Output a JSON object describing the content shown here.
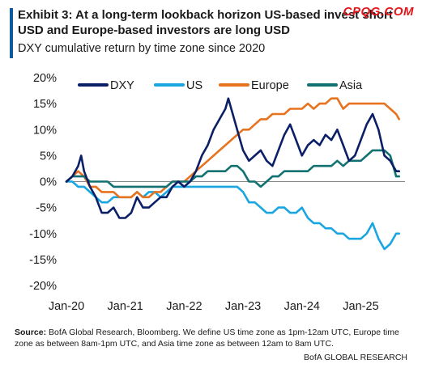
{
  "header": {
    "title": "Exhibit 3: At a long-term lookback horizon US-based invest short USD and Europe-based investors are long USD",
    "subtitle": "DXY cumulative return by time zone since 2020",
    "watermark": "CPQG.COM"
  },
  "footer": {
    "source_label": "Source:",
    "source_text": " BofA Global Research, Bloomberg. We define US time zone as 1pm-12am UTC, Europe time zone as between 8am-1pm UTC, and Asia time zone as between 12am to 8am UTC.",
    "credit": "BofA GLOBAL RESEARCH"
  },
  "chart_data": {
    "type": "line",
    "ylim": [
      -20,
      20
    ],
    "y_ticks": [
      20,
      15,
      10,
      5,
      0,
      -5,
      -10,
      -15,
      -20
    ],
    "y_tick_labels": [
      "20%",
      "15%",
      "10%",
      "5%",
      "0%",
      "-5%",
      "-10%",
      "-15%",
      "-20%"
    ],
    "xlim": [
      2020.0,
      2025.75
    ],
    "x_ticks": [
      2020,
      2021,
      2022,
      2023,
      2024,
      2025
    ],
    "x_tick_labels": [
      "Jan-20",
      "Jan-21",
      "Jan-22",
      "Jan-23",
      "Jan-24",
      "Jan-25"
    ],
    "legend_position": "top",
    "colors": {
      "DXY": "#0b1f66",
      "US": "#1aa6e0",
      "Europe": "#e8731f",
      "Asia": "#127272"
    },
    "series": [
      {
        "name": "DXY",
        "x": [
          2020.0,
          2020.1,
          2020.2,
          2020.25,
          2020.3,
          2020.4,
          2020.5,
          2020.6,
          2020.7,
          2020.8,
          2020.9,
          2021.0,
          2021.1,
          2021.2,
          2021.3,
          2021.4,
          2021.5,
          2021.6,
          2021.7,
          2021.8,
          2021.9,
          2022.0,
          2022.1,
          2022.2,
          2022.3,
          2022.4,
          2022.5,
          2022.6,
          2022.7,
          2022.75,
          2022.8,
          2022.9,
          2023.0,
          2023.1,
          2023.2,
          2023.3,
          2023.4,
          2023.5,
          2023.6,
          2023.7,
          2023.8,
          2023.9,
          2024.0,
          2024.1,
          2024.2,
          2024.3,
          2024.4,
          2024.5,
          2024.6,
          2024.7,
          2024.8,
          2024.9,
          2025.0,
          2025.1,
          2025.2,
          2025.3,
          2025.4,
          2025.5,
          2025.6,
          2025.65
        ],
        "values": [
          0,
          1,
          3,
          5,
          2,
          -1,
          -3,
          -6,
          -6,
          -5,
          -7,
          -7,
          -6,
          -3,
          -5,
          -5,
          -4,
          -3,
          -3,
          -1,
          0,
          -1,
          0,
          2,
          5,
          7,
          10,
          12,
          14,
          16,
          14,
          10,
          6,
          4,
          5,
          6,
          4,
          3,
          6,
          9,
          11,
          8,
          5,
          7,
          8,
          7,
          9,
          8,
          10,
          7,
          4,
          5,
          8,
          11,
          13,
          10,
          5,
          4,
          2,
          2
        ]
      },
      {
        "name": "US",
        "x": [
          2020.0,
          2020.1,
          2020.2,
          2020.3,
          2020.4,
          2020.5,
          2020.6,
          2020.7,
          2020.8,
          2020.9,
          2021.0,
          2021.1,
          2021.2,
          2021.3,
          2021.4,
          2021.5,
          2021.6,
          2021.7,
          2021.8,
          2021.9,
          2022.0,
          2022.1,
          2022.2,
          2022.3,
          2022.4,
          2022.5,
          2022.6,
          2022.7,
          2022.8,
          2022.9,
          2023.0,
          2023.1,
          2023.2,
          2023.3,
          2023.4,
          2023.5,
          2023.6,
          2023.7,
          2023.8,
          2023.9,
          2024.0,
          2024.1,
          2024.2,
          2024.3,
          2024.4,
          2024.5,
          2024.6,
          2024.7,
          2024.8,
          2024.9,
          2025.0,
          2025.1,
          2025.2,
          2025.3,
          2025.4,
          2025.5,
          2025.6,
          2025.65
        ],
        "values": [
          0,
          0,
          -1,
          -1,
          -2,
          -3,
          -4,
          -4,
          -3,
          -3,
          -3,
          -3,
          -2,
          -3,
          -2,
          -2,
          -3,
          -2,
          -1,
          -1,
          -1,
          -1,
          -1,
          -1,
          -1,
          -1,
          -1,
          -1,
          -1,
          -1,
          -2,
          -4,
          -4,
          -5,
          -6,
          -6,
          -5,
          -5,
          -6,
          -6,
          -5,
          -7,
          -8,
          -8,
          -9,
          -9,
          -10,
          -10,
          -11,
          -11,
          -11,
          -10,
          -8,
          -11,
          -13,
          -12,
          -10,
          -10
        ]
      },
      {
        "name": "Europe",
        "x": [
          2020.0,
          2020.1,
          2020.2,
          2020.3,
          2020.4,
          2020.5,
          2020.6,
          2020.7,
          2020.8,
          2020.9,
          2021.0,
          2021.1,
          2021.2,
          2021.3,
          2021.4,
          2021.5,
          2021.6,
          2021.7,
          2021.8,
          2021.9,
          2022.0,
          2022.1,
          2022.2,
          2022.3,
          2022.4,
          2022.5,
          2022.6,
          2022.7,
          2022.8,
          2022.9,
          2023.0,
          2023.1,
          2023.2,
          2023.3,
          2023.4,
          2023.5,
          2023.6,
          2023.7,
          2023.8,
          2023.9,
          2024.0,
          2024.1,
          2024.2,
          2024.3,
          2024.4,
          2024.5,
          2024.6,
          2024.7,
          2024.8,
          2024.9,
          2025.0,
          2025.1,
          2025.2,
          2025.3,
          2025.4,
          2025.5,
          2025.6,
          2025.65
        ],
        "values": [
          0,
          1,
          2,
          1,
          -1,
          -1,
          -2,
          -2,
          -2,
          -3,
          -3,
          -3,
          -2,
          -3,
          -3,
          -2,
          -2,
          -1,
          0,
          0,
          0,
          1,
          2,
          3,
          4,
          5,
          6,
          7,
          8,
          9,
          10,
          10,
          11,
          12,
          12,
          13,
          13,
          13,
          14,
          14,
          14,
          15,
          14,
          15,
          15,
          16,
          16,
          14,
          15,
          15,
          15,
          15,
          15,
          15,
          15,
          14,
          13,
          12
        ]
      },
      {
        "name": "Asia",
        "x": [
          2020.0,
          2020.1,
          2020.2,
          2020.3,
          2020.4,
          2020.5,
          2020.6,
          2020.7,
          2020.8,
          2020.9,
          2021.0,
          2021.1,
          2021.2,
          2021.3,
          2021.4,
          2021.5,
          2021.6,
          2021.7,
          2021.8,
          2021.9,
          2022.0,
          2022.1,
          2022.2,
          2022.3,
          2022.4,
          2022.5,
          2022.6,
          2022.7,
          2022.8,
          2022.9,
          2023.0,
          2023.1,
          2023.2,
          2023.3,
          2023.4,
          2023.5,
          2023.6,
          2023.7,
          2023.8,
          2023.9,
          2024.0,
          2024.1,
          2024.2,
          2024.3,
          2024.4,
          2024.5,
          2024.6,
          2024.7,
          2024.8,
          2024.9,
          2025.0,
          2025.1,
          2025.2,
          2025.3,
          2025.4,
          2025.5,
          2025.6,
          2025.65
        ],
        "values": [
          0,
          1,
          1,
          1,
          0,
          0,
          0,
          0,
          -1,
          -1,
          -1,
          -1,
          -1,
          -1,
          -1,
          -1,
          -1,
          -1,
          0,
          0,
          0,
          0,
          1,
          1,
          2,
          2,
          2,
          2,
          3,
          3,
          2,
          0,
          0,
          -1,
          0,
          1,
          1,
          2,
          2,
          2,
          2,
          2,
          3,
          3,
          3,
          3,
          4,
          3,
          4,
          4,
          4,
          5,
          6,
          6,
          6,
          5,
          1,
          1
        ]
      }
    ]
  }
}
